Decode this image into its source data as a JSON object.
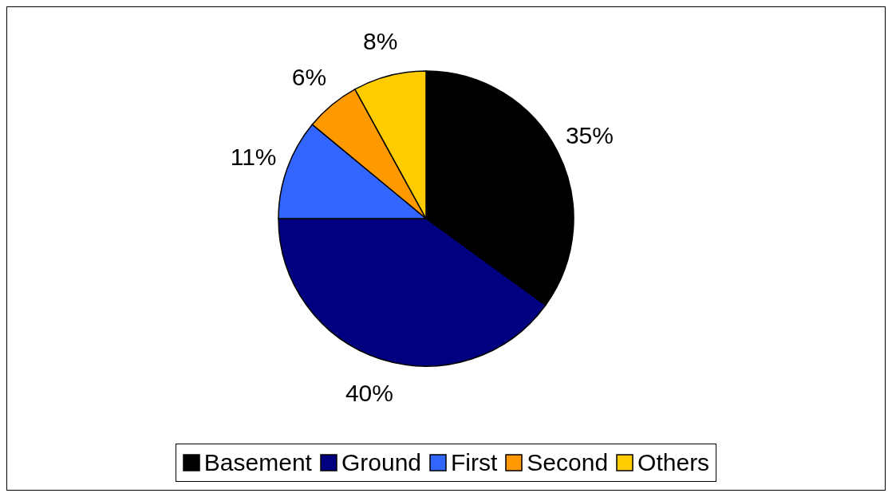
{
  "chart_data": {
    "type": "pie",
    "categories": [
      "Basement",
      "Ground",
      "First",
      "Second",
      "Others"
    ],
    "values": [
      35,
      40,
      11,
      6,
      8
    ],
    "colors": [
      "#000000",
      "#000080",
      "#3366ff",
      "#ff9900",
      "#ffcc00"
    ],
    "value_labels": [
      "35%",
      "40%",
      "11%",
      "6%",
      "8%"
    ],
    "legend": "bottom"
  }
}
